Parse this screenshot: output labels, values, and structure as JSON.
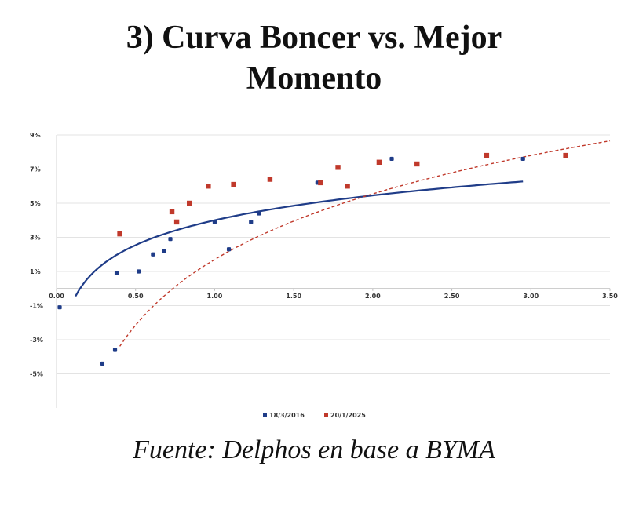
{
  "title": {
    "line1": "3)  Curva Boncer vs. Mejor",
    "line2": "Momento"
  },
  "source": "Fuente:  Delphos en base a BYMA",
  "chart_data": {
    "type": "scatter",
    "xlim": [
      0,
      3.5
    ],
    "ylim": [
      -7,
      9
    ],
    "x_ticks": [
      {
        "v": 0,
        "label": "0.00"
      },
      {
        "v": 0.5,
        "label": "0.50"
      },
      {
        "v": 1.0,
        "label": "1.00"
      },
      {
        "v": 1.5,
        "label": "1.50"
      },
      {
        "v": 2.0,
        "label": "2.00"
      },
      {
        "v": 2.5,
        "label": "2.50"
      },
      {
        "v": 3.0,
        "label": "3.00"
      },
      {
        "v": 3.5,
        "label": "3.50"
      }
    ],
    "y_ticks": [
      {
        "v": 9,
        "label": "9%"
      },
      {
        "v": 7,
        "label": "7%"
      },
      {
        "v": 5,
        "label": "5%"
      },
      {
        "v": 3,
        "label": "3%"
      },
      {
        "v": 1,
        "label": "1%"
      },
      {
        "v": -1,
        "label": "-1%"
      },
      {
        "v": -3,
        "label": "-3%"
      },
      {
        "v": -5,
        "label": "-5%"
      }
    ],
    "grid": true,
    "legend_position": "bottom",
    "series": [
      {
        "name": "18/3/2016",
        "color": "#1f3c88",
        "marker": "circle",
        "points": [
          [
            0.02,
            -1.1
          ],
          [
            0.29,
            -4.4
          ],
          [
            0.37,
            -3.6
          ],
          [
            0.38,
            0.9
          ],
          [
            0.52,
            1.0
          ],
          [
            0.61,
            2.0
          ],
          [
            0.68,
            2.2
          ],
          [
            0.72,
            2.9
          ],
          [
            1.0,
            3.9
          ],
          [
            1.09,
            2.3
          ],
          [
            1.23,
            3.9
          ],
          [
            1.28,
            4.4
          ],
          [
            1.65,
            6.2
          ],
          [
            2.12,
            7.6
          ],
          [
            2.95,
            7.6
          ]
        ],
        "trend": {
          "style": "solid",
          "x_from": 0.12,
          "x_to": 2.95,
          "a": 2.1,
          "b": 4.0
        }
      },
      {
        "name": "20/1/2025",
        "color": "#c0392b",
        "marker": "square",
        "points": [
          [
            0.4,
            3.2
          ],
          [
            0.73,
            4.5
          ],
          [
            0.76,
            3.9
          ],
          [
            0.84,
            5.0
          ],
          [
            0.96,
            6.0
          ],
          [
            1.12,
            6.1
          ],
          [
            1.35,
            6.4
          ],
          [
            1.67,
            6.2
          ],
          [
            1.78,
            7.1
          ],
          [
            1.84,
            6.0
          ],
          [
            2.04,
            7.4
          ],
          [
            2.28,
            7.3
          ],
          [
            2.72,
            7.8
          ],
          [
            3.22,
            7.8
          ]
        ],
        "trend": {
          "style": "dashed",
          "x_from": 0.4,
          "x_to": 3.5,
          "a": 5.55,
          "b": 1.7
        }
      }
    ]
  }
}
